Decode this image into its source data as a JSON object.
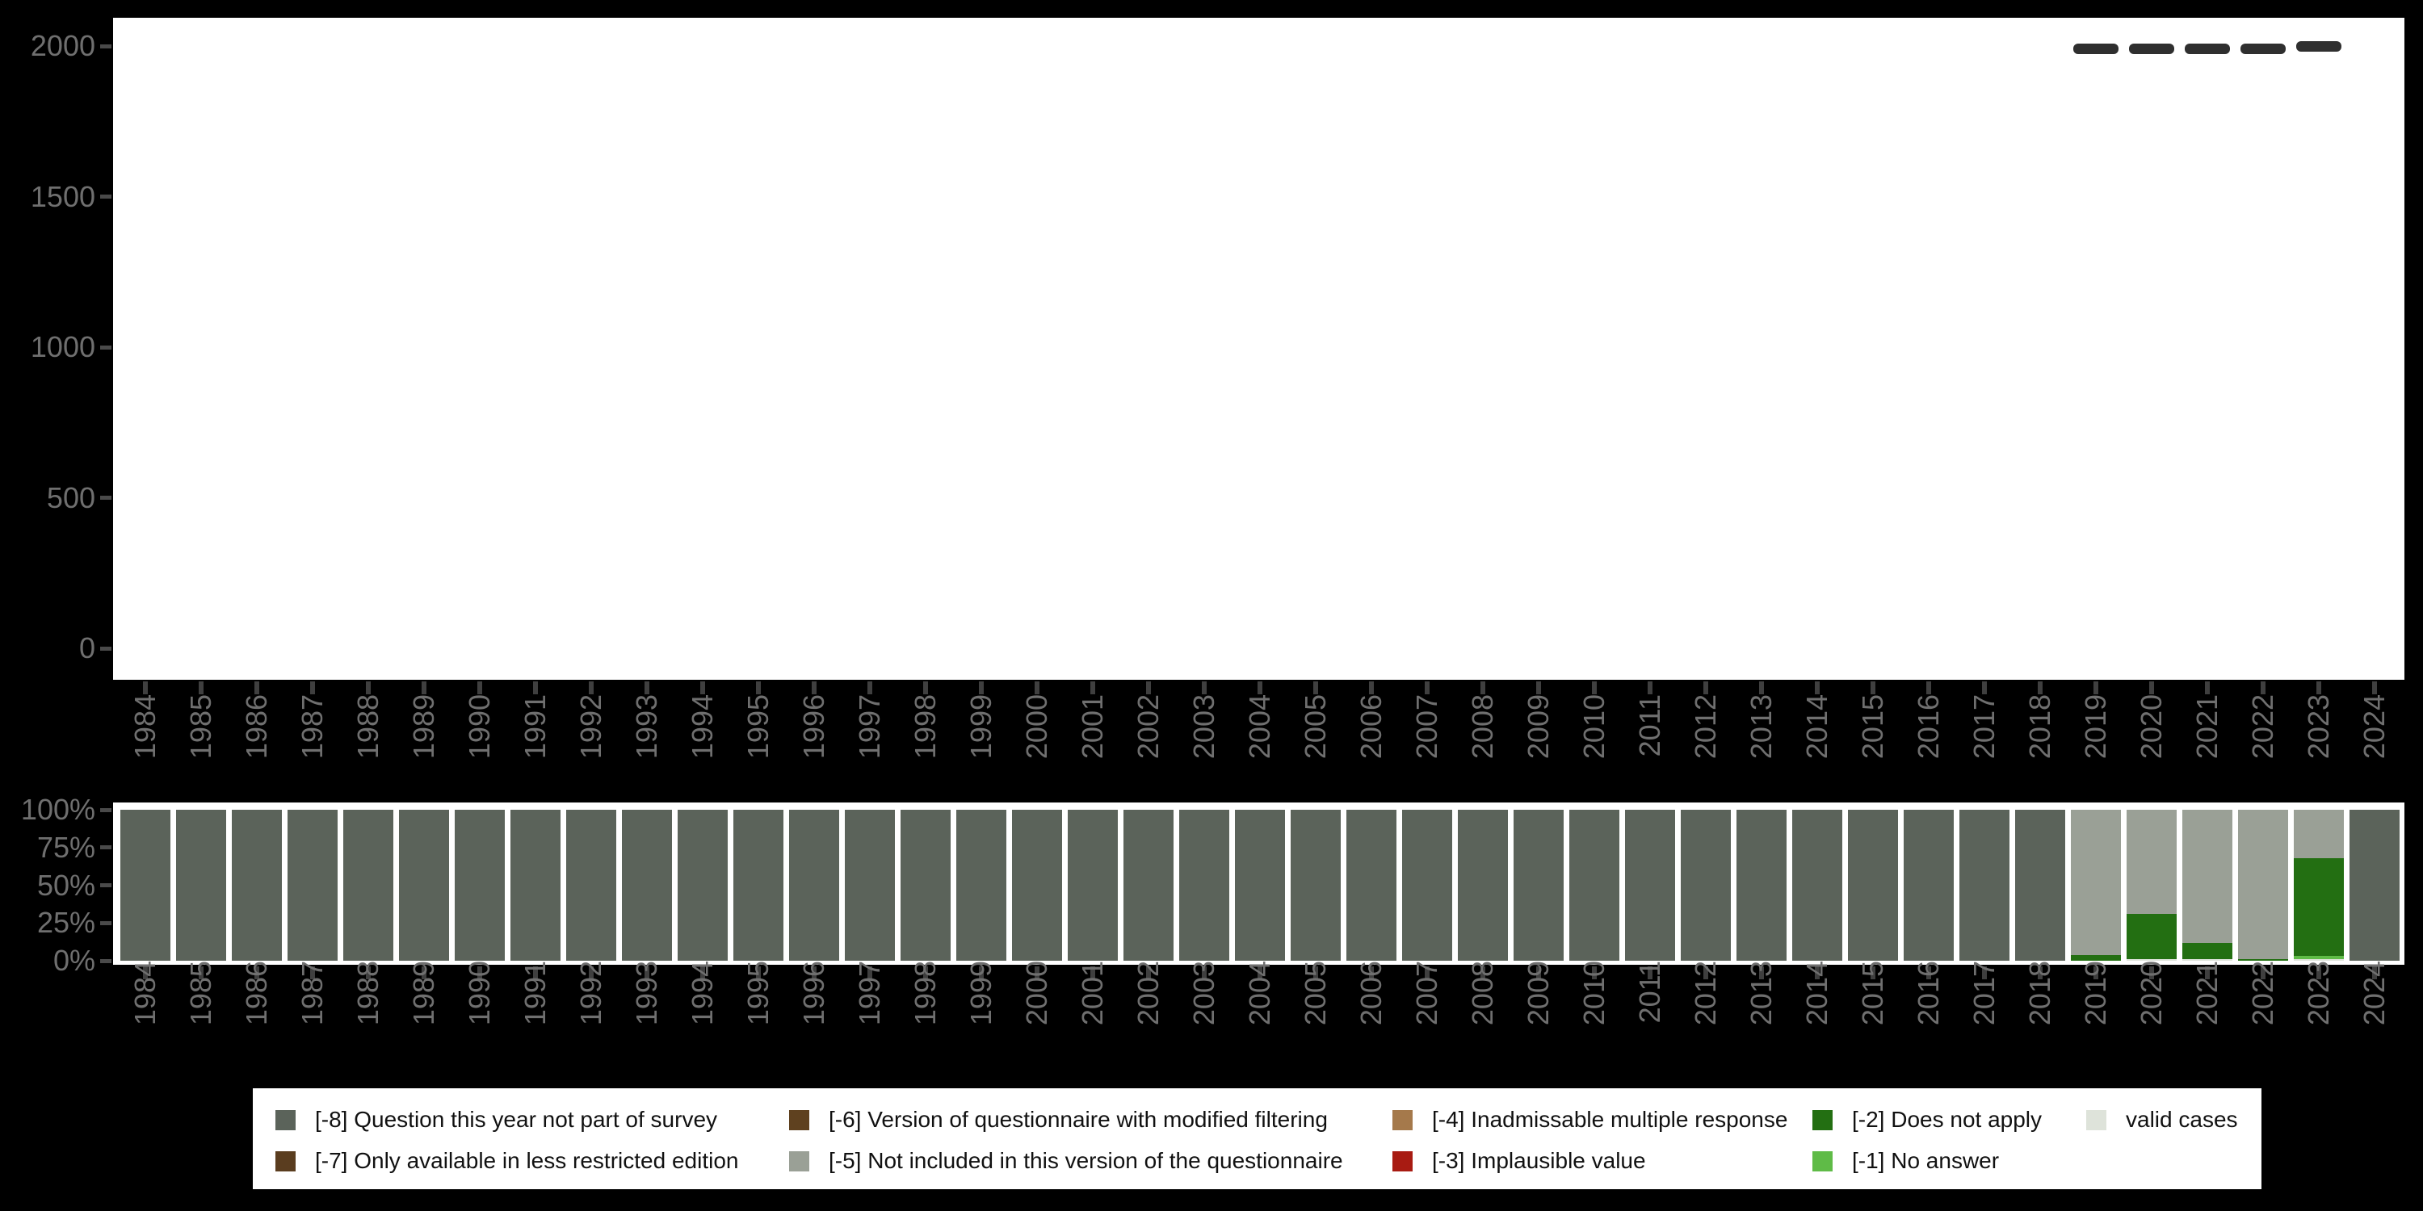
{
  "figure": {
    "background": "#000000",
    "plot_background": "#FFFFFF",
    "axis_label_color": "#6F6F6F",
    "tick_color": "#4A4A4A",
    "marker_color": "#2F2F2F"
  },
  "chart_data": [
    {
      "type": "scatter",
      "title": "",
      "xlabel": "",
      "ylabel": "",
      "marker": "horizontal-dash",
      "ylim": [
        0,
        2000
      ],
      "yticks": [
        0,
        500,
        1000,
        1500,
        2000
      ],
      "ytick_labels": [
        "0",
        "500",
        "1000",
        "1500",
        "2000"
      ],
      "categories": [
        "1984",
        "1985",
        "1986",
        "1987",
        "1988",
        "1989",
        "1990",
        "1991",
        "1992",
        "1993",
        "1994",
        "1995",
        "1996",
        "1997",
        "1998",
        "1999",
        "2000",
        "2001",
        "2002",
        "2003",
        "2004",
        "2005",
        "2006",
        "2007",
        "2008",
        "2009",
        "2010",
        "2011",
        "2012",
        "2013",
        "2014",
        "2015",
        "2016",
        "2017",
        "2018",
        "2019",
        "2020",
        "2021",
        "2022",
        "2023",
        "2024"
      ],
      "points": [
        {
          "year": "2019",
          "value": 1990
        },
        {
          "year": "2020",
          "value": 1990
        },
        {
          "year": "2021",
          "value": 1990
        },
        {
          "year": "2022",
          "value": 1990
        },
        {
          "year": "2023",
          "value": 1998
        }
      ],
      "grid": false,
      "legend_position": "none"
    },
    {
      "type": "bar",
      "stacked": true,
      "units": "percent",
      "title": "",
      "xlabel": "",
      "ylabel": "",
      "ylim": [
        0,
        100
      ],
      "yticks": [
        0,
        25,
        50,
        75,
        100
      ],
      "ytick_labels": [
        "0%",
        "25%",
        "50%",
        "75%",
        "100%"
      ],
      "categories": [
        "1984",
        "1985",
        "1986",
        "1987",
        "1988",
        "1989",
        "1990",
        "1991",
        "1992",
        "1993",
        "1994",
        "1995",
        "1996",
        "1997",
        "1998",
        "1999",
        "2000",
        "2001",
        "2002",
        "2003",
        "2004",
        "2005",
        "2006",
        "2007",
        "2008",
        "2009",
        "2010",
        "2011",
        "2012",
        "2013",
        "2014",
        "2015",
        "2016",
        "2017",
        "2018",
        "2019",
        "2020",
        "2021",
        "2022",
        "2023",
        "2024"
      ],
      "stack_order_bottom_to_top": [
        "valid",
        "-1",
        "-2",
        "-3",
        "-4",
        "-5",
        "-6",
        "-7",
        "-8"
      ],
      "series": [
        {
          "code": "-8",
          "name": "[-8] Question this year not part of survey",
          "color": "#5B635A",
          "values": [
            100,
            100,
            100,
            100,
            100,
            100,
            100,
            100,
            100,
            100,
            100,
            100,
            100,
            100,
            100,
            100,
            100,
            100,
            100,
            100,
            100,
            100,
            100,
            100,
            100,
            100,
            100,
            100,
            100,
            100,
            100,
            100,
            100,
            100,
            100,
            0,
            0,
            0,
            0,
            0,
            100
          ]
        },
        {
          "code": "-7",
          "name": "[-7] Only available in less restricted edition",
          "color": "#5A3D1F",
          "values": [
            0,
            0,
            0,
            0,
            0,
            0,
            0,
            0,
            0,
            0,
            0,
            0,
            0,
            0,
            0,
            0,
            0,
            0,
            0,
            0,
            0,
            0,
            0,
            0,
            0,
            0,
            0,
            0,
            0,
            0,
            0,
            0,
            0,
            0,
            0,
            0,
            0,
            0,
            0,
            0,
            0
          ]
        },
        {
          "code": "-6",
          "name": "[-6] Version of questionnaire with modified filtering",
          "color": "#5F411F",
          "values": [
            0,
            0,
            0,
            0,
            0,
            0,
            0,
            0,
            0,
            0,
            0,
            0,
            0,
            0,
            0,
            0,
            0,
            0,
            0,
            0,
            0,
            0,
            0,
            0,
            0,
            0,
            0,
            0,
            0,
            0,
            0,
            0,
            0,
            0,
            0,
            0,
            0,
            0,
            0,
            0,
            0
          ]
        },
        {
          "code": "-5",
          "name": "[-5] Not included in this version of the questionnaire",
          "color": "#9AA096",
          "values": [
            0,
            0,
            0,
            0,
            0,
            0,
            0,
            0,
            0,
            0,
            0,
            0,
            0,
            0,
            0,
            0,
            0,
            0,
            0,
            0,
            0,
            0,
            0,
            0,
            0,
            0,
            0,
            0,
            0,
            0,
            0,
            0,
            0,
            0,
            0,
            96,
            69,
            88,
            99,
            32,
            0
          ]
        },
        {
          "code": "-4",
          "name": "[-4] Inadmissable multiple response",
          "color": "#A5794B",
          "values": [
            0,
            0,
            0,
            0,
            0,
            0,
            0,
            0,
            0,
            0,
            0,
            0,
            0,
            0,
            0,
            0,
            0,
            0,
            0,
            0,
            0,
            0,
            0,
            0,
            0,
            0,
            0,
            0,
            0,
            0,
            0,
            0,
            0,
            0,
            0,
            0,
            0,
            0,
            0,
            0,
            0
          ]
        },
        {
          "code": "-3",
          "name": "[-3] Implausible value",
          "color": "#A81B12",
          "values": [
            0,
            0,
            0,
            0,
            0,
            0,
            0,
            0,
            0,
            0,
            0,
            0,
            0,
            0,
            0,
            0,
            0,
            0,
            0,
            0,
            0,
            0,
            0,
            0,
            0,
            0,
            0,
            0,
            0,
            0,
            0,
            0,
            0,
            0,
            0,
            0,
            0,
            0,
            0,
            0,
            0
          ]
        },
        {
          "code": "-2",
          "name": "[-2] Does not apply",
          "color": "#236F12",
          "values": [
            0,
            0,
            0,
            0,
            0,
            0,
            0,
            0,
            0,
            0,
            0,
            0,
            0,
            0,
            0,
            0,
            0,
            0,
            0,
            0,
            0,
            0,
            0,
            0,
            0,
            0,
            0,
            0,
            0,
            0,
            0,
            0,
            0,
            0,
            0,
            4,
            30,
            11,
            1,
            65,
            0
          ]
        },
        {
          "code": "-1",
          "name": "[-1] No answer",
          "color": "#5FBB47",
          "values": [
            0,
            0,
            0,
            0,
            0,
            0,
            0,
            0,
            0,
            0,
            0,
            0,
            0,
            0,
            0,
            0,
            0,
            0,
            0,
            0,
            0,
            0,
            0,
            0,
            0,
            0,
            0,
            0,
            0,
            0,
            0,
            0,
            0,
            0,
            0,
            0,
            0,
            0,
            0,
            2,
            0
          ]
        },
        {
          "code": "valid",
          "name": "valid cases",
          "color": "#DEE3DA",
          "values": [
            0,
            0,
            0,
            0,
            0,
            0,
            0,
            0,
            0,
            0,
            0,
            0,
            0,
            0,
            0,
            0,
            0,
            0,
            0,
            0,
            0,
            0,
            0,
            0,
            0,
            0,
            0,
            0,
            0,
            0,
            0,
            0,
            0,
            0,
            0,
            0,
            1,
            1,
            0,
            1,
            0
          ]
        }
      ],
      "grid": false
    }
  ],
  "legend": {
    "background": "#FFFFFF",
    "columns": [
      [
        {
          "code": "-8",
          "label": "[-8] Question this year not part of survey",
          "color": "#5B635A"
        },
        {
          "code": "-7",
          "label": "[-7] Only available in less restricted edition",
          "color": "#5A3D1F"
        }
      ],
      [
        {
          "code": "-6",
          "label": "[-6] Version of questionnaire with modified filtering",
          "color": "#5F411F"
        },
        {
          "code": "-5",
          "label": "[-5] Not included in this version of the questionnaire",
          "color": "#9AA096"
        }
      ],
      [
        {
          "code": "-4",
          "label": "[-4] Inadmissable multiple response",
          "color": "#A5794B"
        },
        {
          "code": "-3",
          "label": "[-3] Implausible value",
          "color": "#A81B12"
        }
      ],
      [
        {
          "code": "-2",
          "label": "[-2] Does not apply",
          "color": "#236F12"
        },
        {
          "code": "-1",
          "label": "[-1] No answer",
          "color": "#5FBB47"
        }
      ],
      [
        {
          "code": "valid",
          "label": "valid cases",
          "color": "#DEE3DA"
        }
      ]
    ]
  }
}
